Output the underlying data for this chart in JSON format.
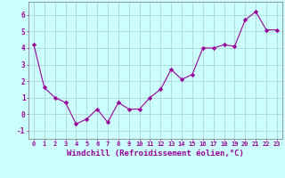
{
  "x": [
    0,
    1,
    2,
    3,
    4,
    5,
    6,
    7,
    8,
    9,
    10,
    11,
    12,
    13,
    14,
    15,
    16,
    17,
    18,
    19,
    20,
    21,
    22,
    23
  ],
  "y": [
    4.2,
    1.6,
    1.0,
    0.7,
    -0.6,
    -0.3,
    0.3,
    -0.5,
    0.7,
    0.3,
    0.3,
    1.0,
    1.5,
    2.7,
    2.1,
    2.4,
    4.0,
    4.0,
    4.2,
    4.1,
    5.7,
    6.2,
    5.1,
    5.1
  ],
  "line_color": "#990099",
  "marker": "D",
  "marker_size": 2.2,
  "bg_color": "#ccffff",
  "grid_color": "#aacccc",
  "xlabel": "Windchill (Refroidissement éolien,°C)",
  "xlabel_fontsize": 6.5,
  "xtick_fontsize": 5.0,
  "ytick_fontsize": 5.5,
  "yticks": [
    -1,
    0,
    1,
    2,
    3,
    4,
    5,
    6
  ],
  "ylim": [
    -1.5,
    6.8
  ],
  "xlim": [
    -0.5,
    23.5
  ]
}
